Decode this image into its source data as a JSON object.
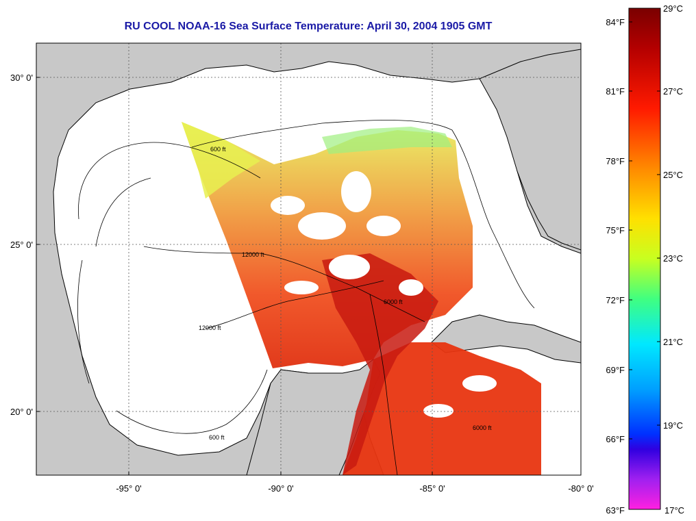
{
  "title": "RU COOL  NOAA-16  Sea Surface Temperature:  April 30, 2004 1905 GMT",
  "map": {
    "lon_ticks": [
      {
        "value": -95,
        "label": "-95° 0'"
      },
      {
        "value": -90,
        "label": "-90° 0'"
      },
      {
        "value": -85,
        "label": "-85° 0'"
      },
      {
        "value": -80,
        "label": "-80° 0'"
      }
    ],
    "lat_ticks": [
      {
        "value": 30,
        "label": "30° 0'"
      },
      {
        "value": 25,
        "label": "25° 0'"
      },
      {
        "value": 20,
        "label": "20° 0'"
      }
    ],
    "contour_labels": [
      "600 ft",
      "6000 ft",
      "12000 ft"
    ]
  },
  "colorbar": {
    "fahrenheit": [
      "84°F",
      "81°F",
      "78°F",
      "75°F",
      "72°F",
      "69°F",
      "66°F",
      "63°F"
    ],
    "celsius": [
      "29°C",
      "27°C",
      "25°C",
      "23°C",
      "21°C",
      "19°C",
      "17°C"
    ]
  }
}
